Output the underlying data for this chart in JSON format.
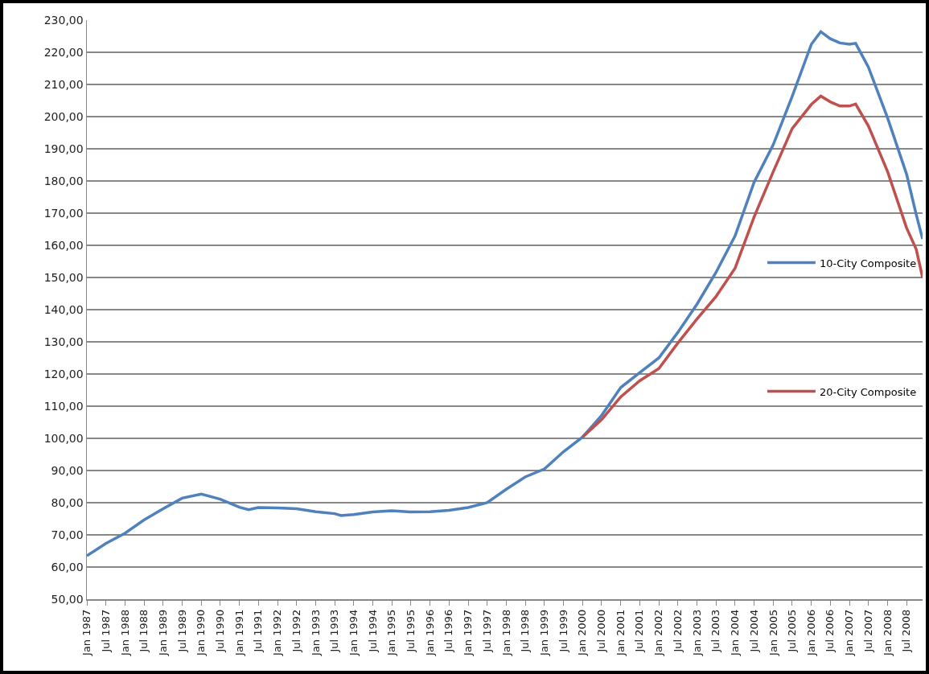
{
  "chart_data": {
    "type": "line",
    "legend": "right",
    "grid": "y",
    "marker": "none",
    "line_style": "solid",
    "ylim": [
      50,
      230
    ],
    "yticks": [
      {
        "value": 50,
        "label": "50,00"
      },
      {
        "value": 60,
        "label": "60,00"
      },
      {
        "value": 70,
        "label": "70,00"
      },
      {
        "value": 80,
        "label": "80,00"
      },
      {
        "value": 90,
        "label": "90,00"
      },
      {
        "value": 100,
        "label": "100,00"
      },
      {
        "value": 110,
        "label": "110,00"
      },
      {
        "value": 120,
        "label": "120,00"
      },
      {
        "value": 130,
        "label": "130,00"
      },
      {
        "value": 140,
        "label": "140,00"
      },
      {
        "value": 150,
        "label": "150,00"
      },
      {
        "value": 160,
        "label": "160,00"
      },
      {
        "value": 170,
        "label": "170,00"
      },
      {
        "value": 180,
        "label": "180,00"
      },
      {
        "value": 190,
        "label": "190,00"
      },
      {
        "value": 200,
        "label": "200,00"
      },
      {
        "value": 210,
        "label": "210,00"
      },
      {
        "value": 220,
        "label": "220,00"
      },
      {
        "value": 230,
        "label": "230,00"
      }
    ],
    "xlim": [
      "1987-01",
      "2008-12"
    ],
    "xticks": [
      {
        "value": "1987-01",
        "label": "Jan 1987"
      },
      {
        "value": "1987-07",
        "label": "Jul 1987"
      },
      {
        "value": "1988-01",
        "label": "Jan 1988"
      },
      {
        "value": "1988-07",
        "label": "Jul 1988"
      },
      {
        "value": "1989-01",
        "label": "Jan 1989"
      },
      {
        "value": "1989-07",
        "label": "Jul 1989"
      },
      {
        "value": "1990-01",
        "label": "Jan 1990"
      },
      {
        "value": "1990-07",
        "label": "Jul 1990"
      },
      {
        "value": "1991-01",
        "label": "Jan 1991"
      },
      {
        "value": "1991-07",
        "label": "Jul 1991"
      },
      {
        "value": "1992-01",
        "label": "Jan 1992"
      },
      {
        "value": "1992-07",
        "label": "Jul 1992"
      },
      {
        "value": "1993-01",
        "label": "Jan 1993"
      },
      {
        "value": "1993-07",
        "label": "Jul 1993"
      },
      {
        "value": "1994-01",
        "label": "Jan 1994"
      },
      {
        "value": "1994-07",
        "label": "Jul 1994"
      },
      {
        "value": "1995-01",
        "label": "Jan 1995"
      },
      {
        "value": "1995-07",
        "label": "Jul 1995"
      },
      {
        "value": "1996-01",
        "label": "Jan 1996"
      },
      {
        "value": "1996-07",
        "label": "Jul 1996"
      },
      {
        "value": "1997-01",
        "label": "Jan 1997"
      },
      {
        "value": "1997-07",
        "label": "Jul 1997"
      },
      {
        "value": "1998-01",
        "label": "Jan 1998"
      },
      {
        "value": "1998-07",
        "label": "Jul 1998"
      },
      {
        "value": "1999-01",
        "label": "Jan 1999"
      },
      {
        "value": "1999-07",
        "label": "Jul 1999"
      },
      {
        "value": "2000-01",
        "label": "Jan 2000"
      },
      {
        "value": "2000-07",
        "label": "Jul 2000"
      },
      {
        "value": "2001-01",
        "label": "Jan 2001"
      },
      {
        "value": "2001-07",
        "label": "Jul 2001"
      },
      {
        "value": "2002-01",
        "label": "Jan 2002"
      },
      {
        "value": "2002-07",
        "label": "Jul 2002"
      },
      {
        "value": "2003-01",
        "label": "Jan 2003"
      },
      {
        "value": "2003-07",
        "label": "Jul 2003"
      },
      {
        "value": "2004-01",
        "label": "Jan 2004"
      },
      {
        "value": "2004-07",
        "label": "Jul 2004"
      },
      {
        "value": "2005-01",
        "label": "Jan 2005"
      },
      {
        "value": "2005-07",
        "label": "Jul 2005"
      },
      {
        "value": "2006-01",
        "label": "Jan 2006"
      },
      {
        "value": "2006-07",
        "label": "Jul 2006"
      },
      {
        "value": "2007-01",
        "label": "Jan 2007"
      },
      {
        "value": "2007-07",
        "label": "Jul 2007"
      },
      {
        "value": "2008-01",
        "label": "Jan 2008"
      },
      {
        "value": "2008-07",
        "label": "Jul 2008"
      }
    ],
    "series": [
      {
        "name": "10-City Composite",
        "color": "#4f81bd",
        "x": [
          "1987-01",
          "1987-07",
          "1988-01",
          "1988-07",
          "1989-01",
          "1989-07",
          "1990-01",
          "1990-07",
          "1991-01",
          "1991-04",
          "1991-07",
          "1992-01",
          "1992-07",
          "1993-01",
          "1993-07",
          "1993-09",
          "1994-01",
          "1994-07",
          "1995-01",
          "1995-07",
          "1996-01",
          "1996-07",
          "1997-01",
          "1997-07",
          "1998-01",
          "1998-07",
          "1999-01",
          "1999-07",
          "2000-01",
          "2000-07",
          "2001-01",
          "2001-07",
          "2002-01",
          "2002-07",
          "2003-01",
          "2003-07",
          "2004-01",
          "2004-07",
          "2005-01",
          "2005-07",
          "2006-01",
          "2006-04",
          "2006-07",
          "2006-10",
          "2007-01",
          "2007-03",
          "2007-07",
          "2008-01",
          "2008-07",
          "2008-10",
          "2008-12"
        ],
        "values": [
          63.5,
          67.3,
          70.5,
          74.6,
          78.1,
          81.4,
          82.7,
          81.1,
          78.6,
          77.8,
          78.5,
          78.4,
          78.1,
          77.2,
          76.6,
          76.0,
          76.3,
          77.1,
          77.5,
          77.1,
          77.2,
          77.6,
          78.5,
          80.0,
          84.2,
          88.0,
          90.5,
          95.8,
          100.4,
          107.1,
          115.8,
          120.4,
          125,
          132.9,
          141.7,
          151.5,
          162.9,
          179.6,
          191.3,
          206.3,
          222.5,
          226.4,
          224.2,
          222.9,
          222.5,
          222.8,
          215.4,
          199.6,
          182.1,
          169.6,
          162
        ]
      },
      {
        "name": "20-City Composite",
        "color": "#c0504d",
        "x": [
          "2000-01",
          "2000-07",
          "2001-01",
          "2001-07",
          "2002-01",
          "2002-07",
          "2003-01",
          "2003-07",
          "2004-01",
          "2004-07",
          "2005-01",
          "2005-07",
          "2006-01",
          "2006-04",
          "2006-07",
          "2006-10",
          "2007-01",
          "2007-03",
          "2007-07",
          "2008-01",
          "2008-07",
          "2008-10",
          "2008-12"
        ],
        "values": [
          100.4,
          105.8,
          112.9,
          117.9,
          121.7,
          129.6,
          137.1,
          144,
          152.9,
          168.8,
          182.9,
          196.3,
          203.8,
          206.4,
          204.6,
          203.3,
          203.3,
          203.9,
          197.1,
          182.9,
          165.4,
          158.8,
          150
        ]
      }
    ]
  }
}
